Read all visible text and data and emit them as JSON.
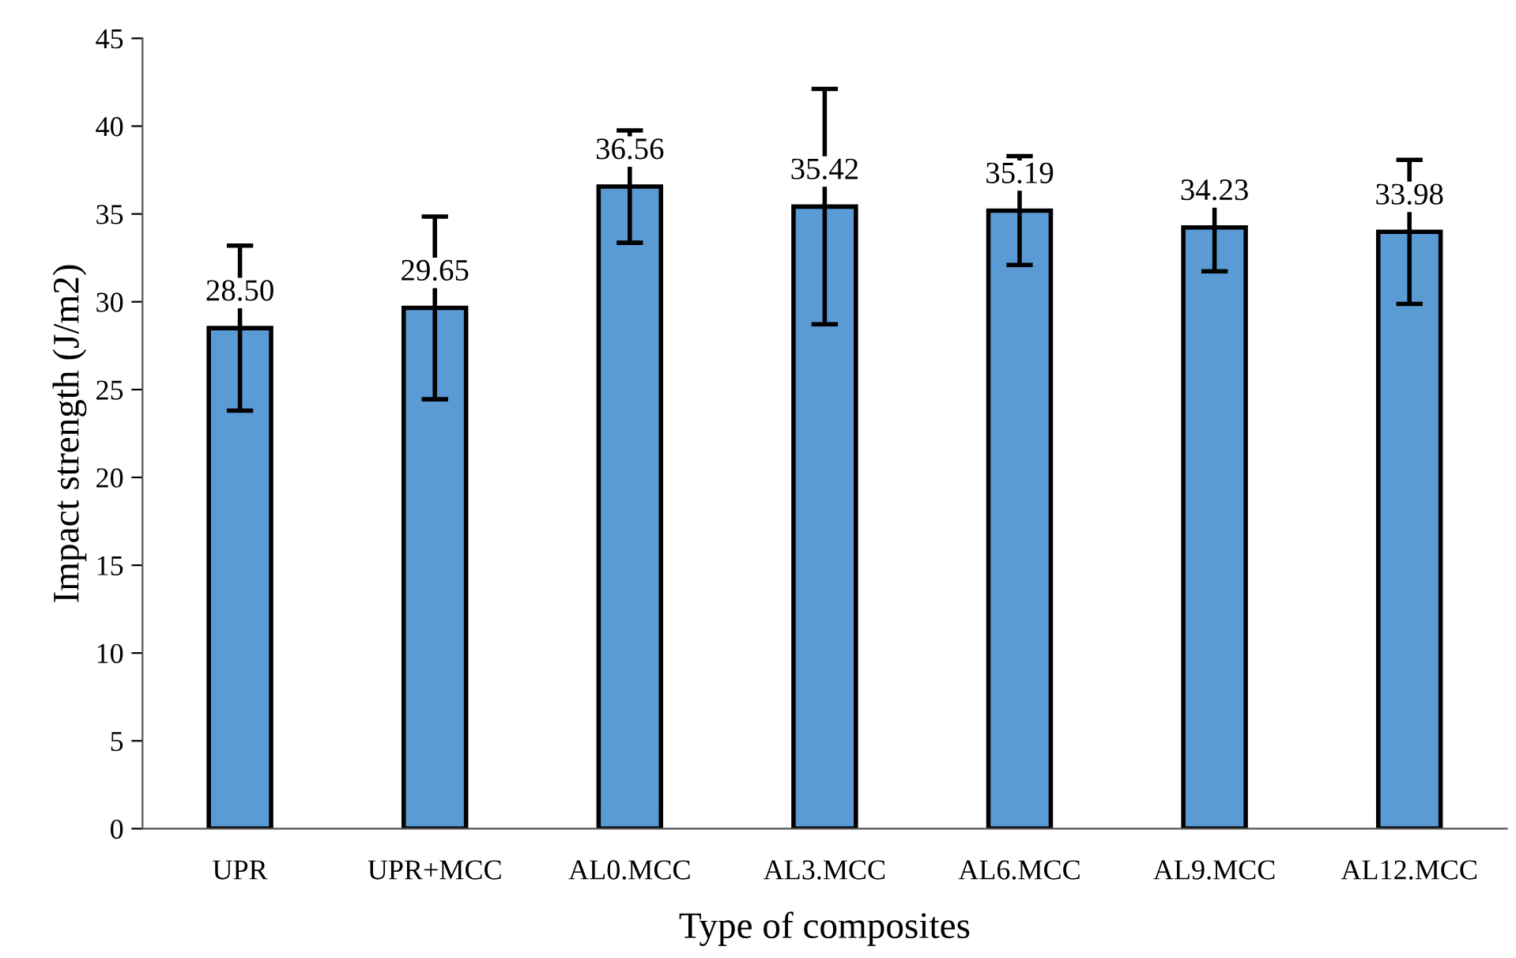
{
  "chart_data": {
    "type": "bar",
    "xlabel": "Type of composites",
    "ylabel": "Impact strength (J/m2)",
    "categories": [
      "UPR",
      "UPR+MCC",
      "AL0.MCC",
      "AL3.MCC",
      "AL6.MCC",
      "AL9.MCC",
      "AL12.MCC"
    ],
    "values": [
      28.5,
      29.65,
      36.56,
      35.42,
      35.19,
      34.23,
      33.98
    ],
    "errors": [
      4.7,
      5.2,
      3.2,
      6.7,
      3.1,
      2.5,
      4.1
    ],
    "color": "#5b9bd5",
    "ylim": [
      0,
      45
    ],
    "yticks": [
      0,
      5,
      10,
      15,
      20,
      25,
      30,
      35,
      40,
      45
    ],
    "value_labels": [
      "28.50",
      "29.65",
      "36.56",
      "35.42",
      "35.19",
      "34.23",
      "33.98"
    ],
    "grid": false,
    "legend": false
  }
}
